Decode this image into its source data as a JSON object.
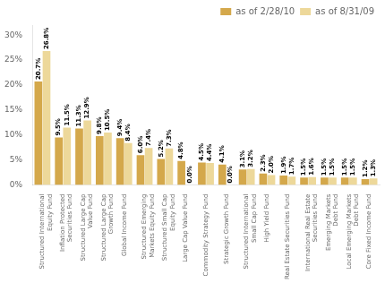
{
  "chart_data": {
    "type": "bar",
    "categories": [
      "Structured International\nEquity Fund",
      "Inflation Protected\nSecurities Fund",
      "Structured Large Cap\nValue Fund",
      "Structured Large Cap\nGrowth Fund",
      "Global Income Fund",
      "Structured Emerging\nMarkets Equity Fund",
      "Structured Small Cap\nEquity Fund",
      "Large Cap Value Fund",
      "Commodity Strategy Fund",
      "Strategic Growth Fund",
      "Structured International\nSmall Cap Fund",
      "High Yield Fund",
      "Real Estate Securities Fund",
      "International Real Estate\nSecurities Fund",
      "Emerging Markets\nDebt Fund",
      "Local Emerging Markets\nDebt Fund",
      "Core Fixed Income Fund"
    ],
    "series": [
      {
        "name": "as of 2/28/10",
        "color": "#D4A84B",
        "values": [
          20.7,
          9.5,
          11.3,
          9.8,
          9.4,
          6.0,
          5.2,
          4.8,
          4.5,
          4.1,
          3.1,
          2.3,
          1.9,
          1.5,
          1.5,
          1.5,
          1.2
        ],
        "value_labels": [
          "20.7%",
          "9.5%",
          "11.3%",
          "9.8%",
          "9.4%",
          "6.0%",
          "5.2%",
          "4.8%",
          "4.5%",
          "4.1%",
          "3.1%",
          "2.3%",
          "1.9%",
          "1.5%",
          "1.5%",
          "1.5%",
          "1.2%"
        ]
      },
      {
        "name": "as of 8/31/09",
        "color": "#EDD89A",
        "values": [
          26.8,
          11.5,
          12.9,
          10.5,
          8.4,
          7.4,
          7.3,
          0.0,
          4.4,
          0.0,
          3.2,
          2.0,
          1.7,
          1.6,
          1.5,
          1.5,
          1.3
        ],
        "value_labels": [
          "26.8%",
          "11.5%",
          "12.9%",
          "10.5%",
          "8.4%",
          "7.4%",
          "7.3%",
          "0.0%",
          "4.4%",
          "0.0%",
          "3.2%",
          "2.0%",
          "1.7%",
          "1.6%",
          "1.5%",
          "1.5%",
          "1.3%"
        ]
      }
    ],
    "ylim": [
      0,
      32
    ],
    "yticks": [
      {
        "value": 0,
        "label": "0%"
      },
      {
        "value": 5,
        "label": "5%"
      },
      {
        "value": 10,
        "label": "10%"
      },
      {
        "value": 15,
        "label": "15%"
      },
      {
        "value": 20,
        "label": "20%"
      },
      {
        "value": 25,
        "label": "25%"
      },
      {
        "value": 30,
        "label": "30%"
      }
    ],
    "grid": false,
    "legend": "upper right",
    "data_labels": true
  }
}
